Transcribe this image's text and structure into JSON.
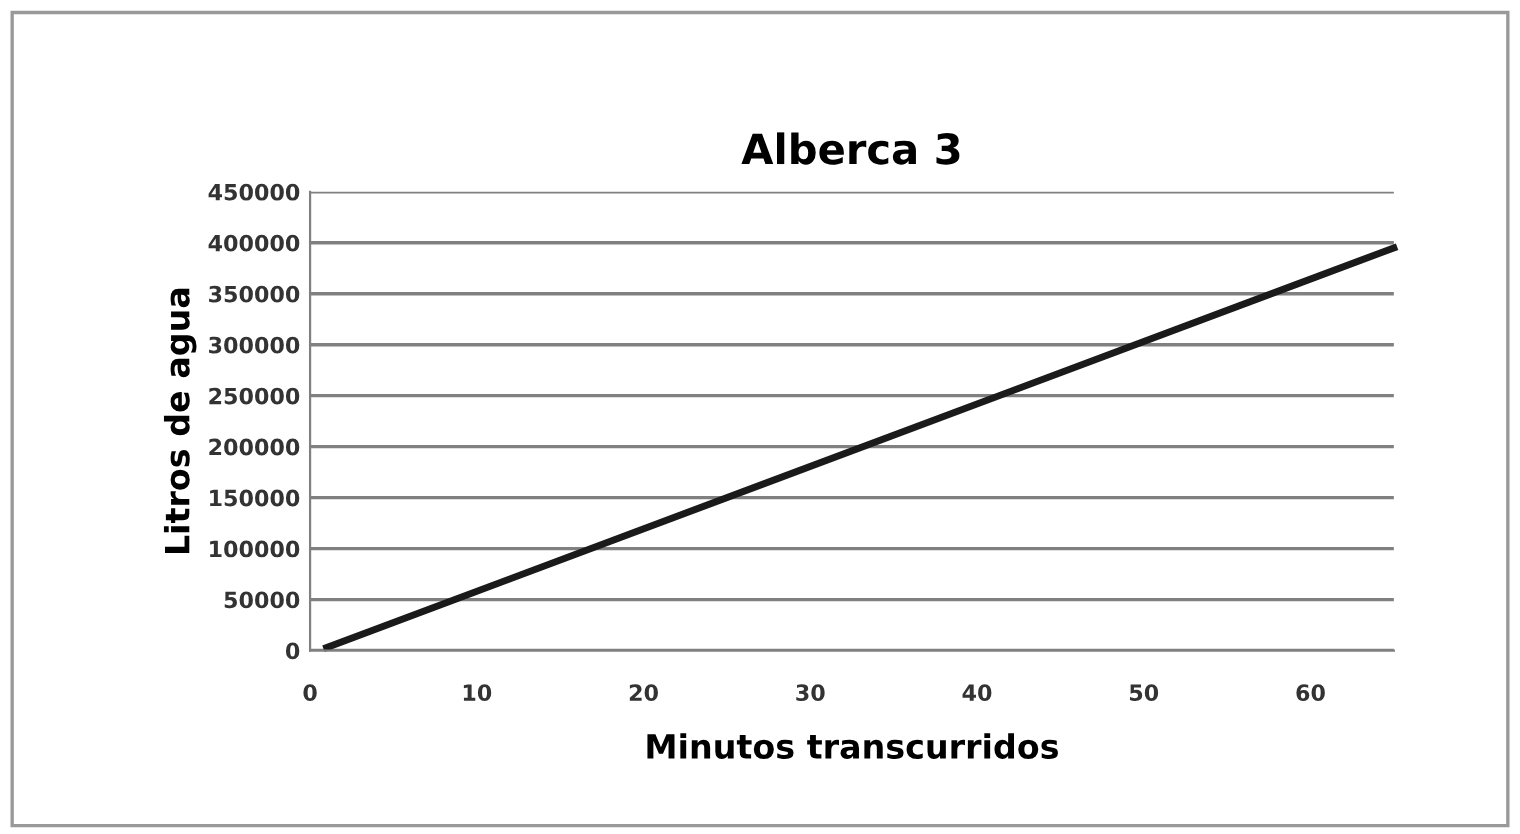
{
  "chart_data": {
    "type": "line",
    "title": "Alberca 3",
    "xlabel": "Minutos transcurridos",
    "ylabel": "Litros de agua",
    "x": [
      1,
      65
    ],
    "series": [
      {
        "color": "#1a1a1a",
        "values": [
          3000,
          395000
        ]
      }
    ],
    "xlim": [
      0,
      65
    ],
    "xticks": [
      0,
      10,
      20,
      30,
      40,
      50,
      60
    ],
    "ylim": [
      0,
      450000
    ],
    "yticks": [
      0,
      50000,
      100000,
      150000,
      200000,
      250000,
      300000,
      350000,
      400000,
      450000
    ],
    "grid": "y",
    "marker": "none",
    "line_style": "solid"
  }
}
